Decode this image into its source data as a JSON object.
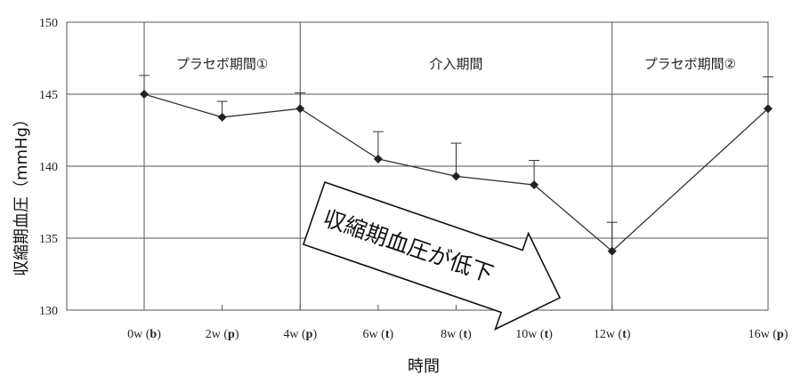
{
  "chart_data": {
    "type": "line",
    "xlabel": "時間",
    "ylabel": "収縮期血圧（mmHg）",
    "ylim": [
      130,
      150
    ],
    "yticks": [
      130,
      135,
      140,
      145,
      150
    ],
    "grid": "horizontal",
    "x_ticks": [
      {
        "week": 0,
        "num": "0w",
        "tag": "b"
      },
      {
        "week": 2,
        "num": "2w",
        "tag": "p"
      },
      {
        "week": 4,
        "num": "4w",
        "tag": "p"
      },
      {
        "week": 6,
        "num": "6w",
        "tag": "t"
      },
      {
        "week": 8,
        "num": "8w",
        "tag": "t"
      },
      {
        "week": 10,
        "num": "10w",
        "tag": "t"
      },
      {
        "week": 12,
        "num": "12w",
        "tag": "t"
      },
      {
        "week": 16,
        "num": "16w",
        "tag": "p"
      }
    ],
    "series": [
      {
        "x": [
          0,
          2,
          4,
          6,
          8,
          10,
          12,
          16
        ],
        "y": [
          145.0,
          143.4,
          144.0,
          140.5,
          139.3,
          138.7,
          134.1,
          144.0
        ],
        "error_upper": [
          1.3,
          1.1,
          1.1,
          1.9,
          2.3,
          1.7,
          2.0,
          2.2
        ]
      }
    ],
    "periods": [
      {
        "label": "プラセボ期間①",
        "start": 0,
        "end": 4
      },
      {
        "label": "介入期間",
        "start": 4,
        "end": 12
      },
      {
        "label": "プラセボ期間②",
        "start": 12,
        "end": 16
      }
    ],
    "annotation": {
      "text": "収縮期血圧が低下"
    }
  }
}
